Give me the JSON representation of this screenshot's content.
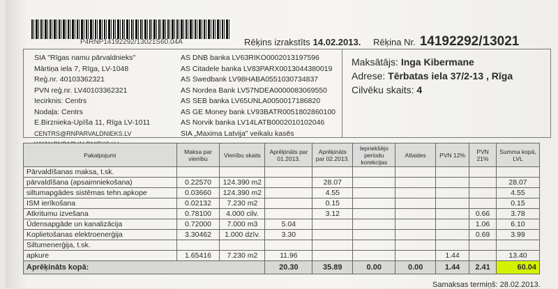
{
  "barcode_text": "P4RNP14192292/13021S60.04A",
  "invoice": {
    "issued_label": "Rēķins izrakstīts",
    "issued_date": "14.02.2013.",
    "number_label": "Rēķina Nr.",
    "number": "14192292/13021"
  },
  "company": [
    "SIA \"Rīgas namu pārvaldnieks\"",
    "Mārtiņa iela 7, Rīga, LV-1048",
    "Reģ.nr. 40103362321",
    "PVN reģ.nr. LV40103362321",
    "Iecirknis: Centrs",
    "Nodaļa:  Centrs",
    "E.Birznieka-Upīša 11, Rīga LV-1011",
    "CENTRS@RNPARVALDNIEKS.LV",
    "WWW.RNPARVALDNIEKS.LV"
  ],
  "banks": [
    "AS DNB banka LV63RIKO0002013197596",
    "AS Citadele banka LV83PARX0013044380019",
    "AS Swedbank LV98HABA0551030734837",
    "AS Nordea Bank LV57NDEA0000083069550",
    "AS SEB banka LV65UNLA0050017186820",
    "AS GE Money bank LV93BATR0051802860100",
    "AS Norvik banka LV14LATB0002010102046",
    "SIA „Maxima Latvija\" veikalu kasēs"
  ],
  "payer": {
    "payer_label": "Maksātājs:",
    "payer": "Inga Kibermane",
    "address_label": "Adrese:",
    "address": "Tērbatas iela 37/2-13 , Rīga",
    "people_label": "Cilvēku skaits:",
    "people": "4"
  },
  "table": {
    "headers": [
      "Pakalpojumi",
      "Maksa par vienību",
      "Vienību skaits",
      "Aprēķināts par 01.2013.",
      "Aprēķināts par 02.2013.",
      "Iepriekšējo periodu korekcijas",
      "Atlaides",
      "PVN 12%",
      "PVN 21%",
      "Summa kopā, LVL"
    ],
    "rows": [
      [
        "Pārvaldīšanas maksa, t.sk.",
        "",
        "",
        "",
        "",
        "",
        "",
        "",
        "",
        ""
      ],
      [
        "pārvaldīšana (apsaimniekošana)",
        "0.22570",
        "124.390 m2",
        "",
        "28.07",
        "",
        "",
        "",
        "",
        "28.07"
      ],
      [
        "siltumapgādes sistēmas tehn.apkope",
        "0.03660",
        "124.390 m2",
        "",
        "4.55",
        "",
        "",
        "",
        "",
        "4.55"
      ],
      [
        "ISM ierīkošana",
        "0.02132",
        "7.230 m2",
        "",
        "0.15",
        "",
        "",
        "",
        "",
        "0.15"
      ],
      [
        "Atkritumu izvešana",
        "0.78100",
        "4.000 cilv.",
        "",
        "3.12",
        "",
        "",
        "",
        "0.66",
        "3.78"
      ],
      [
        "Ūdensapgāde un  kanalizācija",
        "0.72000",
        "7.000 m3",
        "5.04",
        "",
        "",
        "",
        "",
        "1.06",
        "6.10"
      ],
      [
        "Koplietošanas elektroenerģija",
        "3.30462",
        "1.000 dzīv.",
        "3.30",
        "",
        "",
        "",
        "",
        "0.69",
        "3.99"
      ],
      [
        "Siltumenerģija, t.sk.",
        "",
        "",
        "",
        "",
        "",
        "",
        "",
        "",
        ""
      ],
      [
        "apkure",
        "1.65416",
        "7.230 m2",
        "11.96",
        "",
        "",
        "",
        "1.44",
        "",
        "13.40"
      ]
    ],
    "total": {
      "label": "Aprēķināts kopā:",
      "values": [
        "20.30",
        "35.89",
        "0.00",
        "0.00",
        "1.44",
        "2.41",
        "60.04"
      ]
    }
  },
  "due": "Samaksas termiņš: 28.02.2013.",
  "colors": {
    "highlight": "#d4f200"
  }
}
